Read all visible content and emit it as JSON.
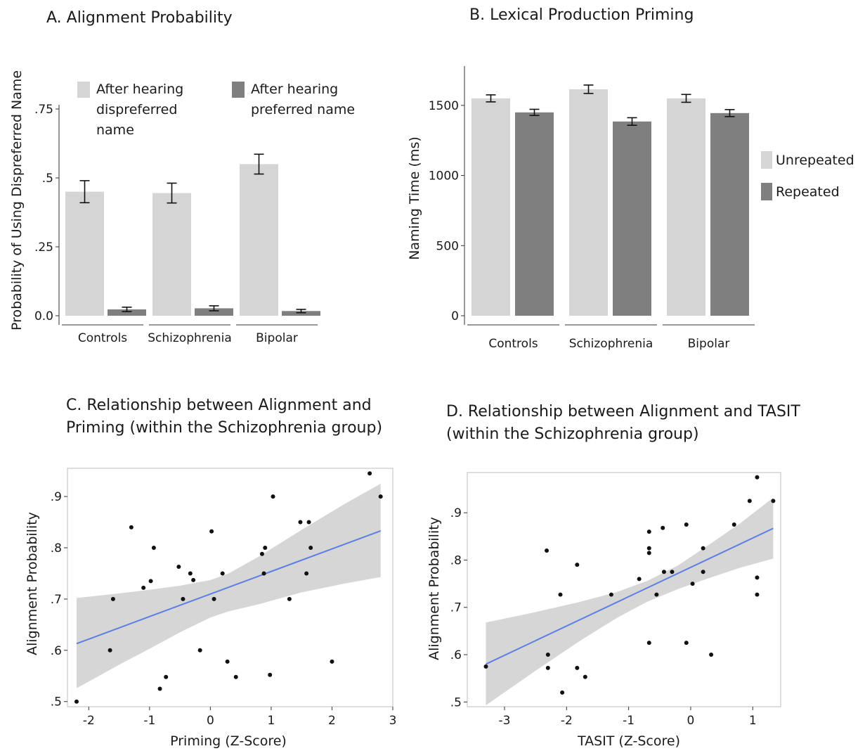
{
  "chart_data": [
    {
      "type": "bar",
      "title": "A. Alignment Probability",
      "ylabel": "Probability of Using Dispreferred Name",
      "xlabel": "",
      "ylim": [
        0,
        0.75
      ],
      "yticks": [
        {
          "value": 0,
          "label": "0.0"
        },
        {
          "value": 0.25,
          "label": ".25"
        },
        {
          "value": 0.5,
          "label": ".5"
        },
        {
          "value": 0.75,
          "label": ".75"
        }
      ],
      "categories": [
        "Controls",
        "Schizophrenia",
        "Bipolar"
      ],
      "legend_position": "top",
      "series": [
        {
          "name": "After hearing dispreferred name",
          "legend_lines": [
            "After hearing",
            "dispreferred",
            "name"
          ],
          "color": "#d5d5d5",
          "values": [
            0.45,
            0.445,
            0.55
          ],
          "errors": [
            0.04,
            0.036,
            0.036
          ]
        },
        {
          "name": "After hearing preferred name",
          "legend_lines": [
            "After hearing",
            "preferred name"
          ],
          "color": "#7f7f7f",
          "values": [
            0.023,
            0.027,
            0.017
          ],
          "errors": [
            0.008,
            0.009,
            0.006
          ]
        }
      ]
    },
    {
      "type": "bar",
      "title": "B. Lexical Production Priming",
      "ylabel": "Naming Time (ms)",
      "xlabel": "",
      "ylim": [
        0,
        1750
      ],
      "yticks": [
        {
          "value": 0,
          "label": "0"
        },
        {
          "value": 500,
          "label": "500"
        },
        {
          "value": 1000,
          "label": "1000"
        },
        {
          "value": 1500,
          "label": "1500"
        }
      ],
      "categories": [
        "Controls",
        "Schizophrenia",
        "Bipolar"
      ],
      "legend_position": "right",
      "series": [
        {
          "name": "Unrepeated",
          "color": "#d5d5d5",
          "values": [
            1550,
            1615,
            1550
          ],
          "errors": [
            25,
            30,
            28
          ]
        },
        {
          "name": "Repeated",
          "color": "#7f7f7f",
          "values": [
            1450,
            1385,
            1445
          ],
          "errors": [
            22,
            27,
            25
          ]
        }
      ]
    },
    {
      "type": "scatter",
      "title_lines": [
        "C. Relationship between Alignment and",
        "Priming (within the Schizophrenia group)"
      ],
      "xlabel": "Priming (Z-Score)",
      "ylabel": "Alignment Probability",
      "xlim": [
        -2.35,
        3.0
      ],
      "ylim": [
        0.49,
        0.955
      ],
      "xticks": [
        {
          "value": -2,
          "label": "-2"
        },
        {
          "value": -1,
          "label": "-1"
        },
        {
          "value": 0,
          "label": "0"
        },
        {
          "value": 1,
          "label": "1"
        },
        {
          "value": 2,
          "label": "2"
        },
        {
          "value": 3,
          "label": "3"
        }
      ],
      "yticks": [
        {
          "value": 0.5,
          "label": ".5"
        },
        {
          "value": 0.6,
          "label": ".6"
        },
        {
          "value": 0.7,
          "label": ".7"
        },
        {
          "value": 0.8,
          "label": ".8"
        },
        {
          "value": 0.9,
          "label": ".9"
        }
      ],
      "fit_line": {
        "x": [
          -2.2,
          2.8
        ],
        "y": [
          0.613,
          0.833
        ],
        "color": "#5b7fe3"
      },
      "confidence_band": {
        "x": [
          -2.2,
          -1.5,
          -1.0,
          -0.5,
          0.0,
          0.3,
          0.8,
          1.5,
          2.2,
          2.8
        ],
        "upper": [
          0.702,
          0.711,
          0.718,
          0.726,
          0.737,
          0.75,
          0.783,
          0.835,
          0.885,
          0.925
        ],
        "lower": [
          0.526,
          0.572,
          0.603,
          0.635,
          0.664,
          0.676,
          0.69,
          0.713,
          0.73,
          0.743
        ]
      },
      "points": [
        {
          "x": -2.2,
          "y": 0.5
        },
        {
          "x": -1.65,
          "y": 0.6
        },
        {
          "x": -1.6,
          "y": 0.7
        },
        {
          "x": -1.3,
          "y": 0.84
        },
        {
          "x": -1.1,
          "y": 0.722
        },
        {
          "x": -0.98,
          "y": 0.735
        },
        {
          "x": -0.93,
          "y": 0.8
        },
        {
          "x": -0.83,
          "y": 0.525
        },
        {
          "x": -0.73,
          "y": 0.548
        },
        {
          "x": -0.52,
          "y": 0.763
        },
        {
          "x": -0.45,
          "y": 0.7
        },
        {
          "x": -0.33,
          "y": 0.75
        },
        {
          "x": -0.28,
          "y": 0.737
        },
        {
          "x": -0.17,
          "y": 0.6
        },
        {
          "x": 0.02,
          "y": 0.832
        },
        {
          "x": 0.06,
          "y": 0.7
        },
        {
          "x": 0.2,
          "y": 0.75
        },
        {
          "x": 0.28,
          "y": 0.578
        },
        {
          "x": 0.42,
          "y": 0.548
        },
        {
          "x": 0.85,
          "y": 0.788
        },
        {
          "x": 0.88,
          "y": 0.75
        },
        {
          "x": 0.9,
          "y": 0.8
        },
        {
          "x": 0.98,
          "y": 0.552
        },
        {
          "x": 1.03,
          "y": 0.9
        },
        {
          "x": 1.3,
          "y": 0.7
        },
        {
          "x": 1.48,
          "y": 0.85
        },
        {
          "x": 1.58,
          "y": 0.75
        },
        {
          "x": 1.62,
          "y": 0.85
        },
        {
          "x": 1.65,
          "y": 0.8
        },
        {
          "x": 2.0,
          "y": 0.578
        },
        {
          "x": 2.62,
          "y": 0.945
        },
        {
          "x": 2.8,
          "y": 0.9
        }
      ]
    },
    {
      "type": "scatter",
      "title_lines": [
        "D. Relationship between Alignment and TASIT",
        "(within the Schizophrenia group)"
      ],
      "xlabel": "TASIT (Z-Score)",
      "ylabel": "Alignment Probability",
      "xlim": [
        -3.6,
        1.45
      ],
      "ylim": [
        0.49,
        0.985
      ],
      "xticks": [
        {
          "value": -3,
          "label": "-3"
        },
        {
          "value": -2,
          "label": "-2"
        },
        {
          "value": -1,
          "label": "-1"
        },
        {
          "value": 0,
          "label": "0"
        },
        {
          "value": 1,
          "label": "1"
        }
      ],
      "yticks": [
        {
          "value": 0.5,
          "label": ".5"
        },
        {
          "value": 0.6,
          "label": ".6"
        },
        {
          "value": 0.7,
          "label": ".7"
        },
        {
          "value": 0.8,
          "label": ".8"
        },
        {
          "value": 0.9,
          "label": ".9"
        }
      ],
      "fit_line": {
        "x": [
          -3.3,
          1.33
        ],
        "y": [
          0.58,
          0.867
        ],
        "color": "#5b7fe3"
      },
      "confidence_band": {
        "x": [
          -3.3,
          -2.5,
          -1.8,
          -1.2,
          -0.7,
          -0.2,
          0.3,
          0.8,
          1.33
        ],
        "upper": [
          0.668,
          0.69,
          0.711,
          0.732,
          0.756,
          0.789,
          0.833,
          0.878,
          0.932
        ],
        "lower": [
          0.493,
          0.566,
          0.628,
          0.677,
          0.712,
          0.739,
          0.762,
          0.784,
          0.803
        ]
      },
      "points": [
        {
          "x": -3.3,
          "y": 0.575
        },
        {
          "x": -2.32,
          "y": 0.82
        },
        {
          "x": -2.3,
          "y": 0.6
        },
        {
          "x": -2.3,
          "y": 0.572
        },
        {
          "x": -2.1,
          "y": 0.727
        },
        {
          "x": -2.07,
          "y": 0.52
        },
        {
          "x": -1.83,
          "y": 0.79
        },
        {
          "x": -1.83,
          "y": 0.572
        },
        {
          "x": -1.7,
          "y": 0.553
        },
        {
          "x": -1.28,
          "y": 0.727
        },
        {
          "x": -0.83,
          "y": 0.76
        },
        {
          "x": -0.67,
          "y": 0.86
        },
        {
          "x": -0.67,
          "y": 0.825
        },
        {
          "x": -0.67,
          "y": 0.815
        },
        {
          "x": -0.67,
          "y": 0.625
        },
        {
          "x": -0.55,
          "y": 0.727
        },
        {
          "x": -0.45,
          "y": 0.868
        },
        {
          "x": -0.43,
          "y": 0.775
        },
        {
          "x": -0.3,
          "y": 0.775
        },
        {
          "x": -0.07,
          "y": 0.875
        },
        {
          "x": -0.07,
          "y": 0.625
        },
        {
          "x": 0.03,
          "y": 0.75
        },
        {
          "x": 0.2,
          "y": 0.825
        },
        {
          "x": 0.2,
          "y": 0.775
        },
        {
          "x": 0.33,
          "y": 0.6
        },
        {
          "x": 0.7,
          "y": 0.875
        },
        {
          "x": 0.95,
          "y": 0.925
        },
        {
          "x": 1.07,
          "y": 0.975
        },
        {
          "x": 1.07,
          "y": 0.763
        },
        {
          "x": 1.07,
          "y": 0.727
        },
        {
          "x": 1.33,
          "y": 0.925
        }
      ]
    }
  ]
}
